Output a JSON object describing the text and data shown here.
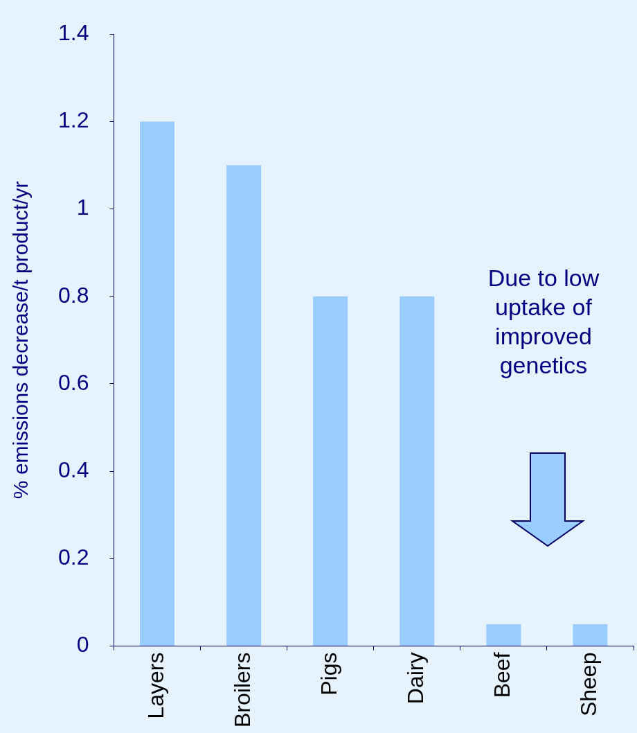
{
  "chart_data": {
    "type": "bar",
    "ylabel": "% emissions decrease/t product/yr",
    "categories": [
      "Layers",
      "Broilers",
      "Pigs",
      "Dairy",
      "Beef",
      "Sheep"
    ],
    "values": [
      1.2,
      1.1,
      0.8,
      0.8,
      0.05,
      0.05
    ],
    "color": "#99ccff",
    "ylim": [
      0,
      1.4
    ],
    "yticks": [
      0,
      0.2,
      0.4,
      0.6,
      0.8,
      1,
      1.2,
      1.4
    ],
    "grid": false,
    "annotations": [
      "Due to low uptake of improved genetics"
    ]
  }
}
